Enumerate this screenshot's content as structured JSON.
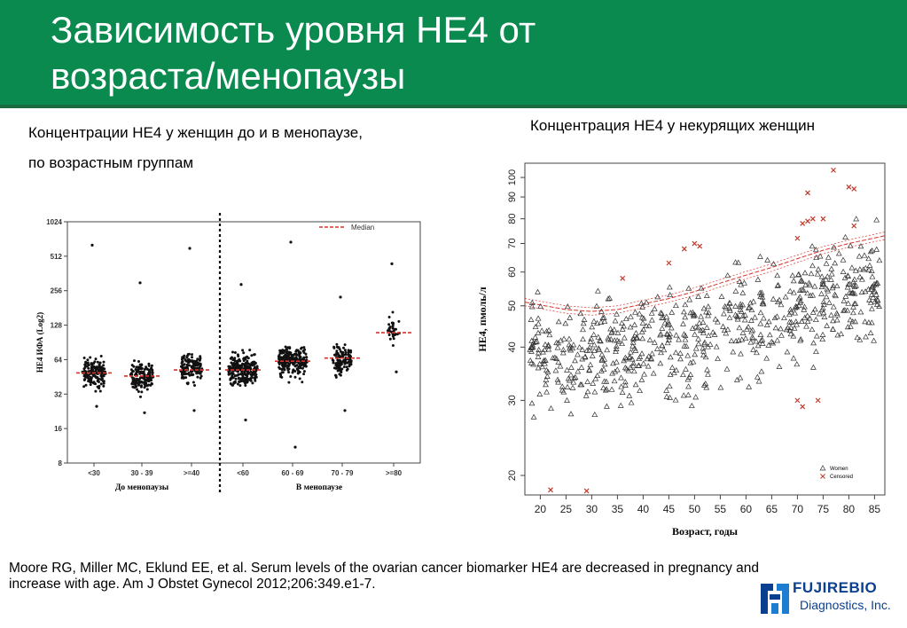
{
  "slide": {
    "title_line1": "Зависимость уровня HE4 от",
    "title_line2": "возраста/менопаузы",
    "left_caption_line1": "Концентрации HE4 у женщин до и в менопаузе,",
    "left_caption_line2": "по возрастным группам",
    "right_caption": "Концентрация HE4 у некурящих женщин",
    "citation": "Moore RG, Miller MC, Eklund EE, et al. Serum levels of the ovarian cancer biomarker HE4 are decreased in pregnancy and increase with age.  Am J Obstet Gynecol 2012;206:349.e1-7.",
    "logo_name": "FUJIREBIO",
    "logo_sub": "Diagnostics, Inc.",
    "colors": {
      "header": "#0a8a4e",
      "logo": "#0b3f8f",
      "median": "#d9342b",
      "censored": "#c0392b"
    }
  },
  "chart_data": [
    {
      "type": "scatter",
      "subtype": "dot-strip",
      "ylabel": "HE4 ИФА (Log2)",
      "y_scale": "log2",
      "ylim": [
        8,
        1024
      ],
      "yticks": [
        "8",
        "16",
        "32",
        "64",
        "128",
        "256",
        "512",
        "1024"
      ],
      "legend": "Median",
      "legend_position": "top-right",
      "groups": [
        {
          "label": "До менопаузы",
          "categories": [
            "<30",
            "30 - 39",
            ">=40"
          ]
        },
        {
          "label": "В менопаузе",
          "categories": [
            "<60",
            "60 - 69",
            "70 - 79",
            ">=80"
          ]
        }
      ],
      "series": [
        {
          "category": "<30",
          "median": 49,
          "min": 25,
          "max": 640,
          "n": 160
        },
        {
          "category": "30 - 39",
          "median": 46,
          "min": 22,
          "max": 300,
          "n": 150
        },
        {
          "category": ">=40",
          "median": 52,
          "min": 23,
          "max": 600,
          "n": 140
        },
        {
          "category": "<60",
          "median": 52,
          "min": 19,
          "max": 290,
          "n": 260
        },
        {
          "category": "60 - 69",
          "median": 62,
          "min": 11,
          "max": 680,
          "n": 220
        },
        {
          "category": "70 - 79",
          "median": 66,
          "min": 23,
          "max": 225,
          "n": 110
        },
        {
          "category": ">=80",
          "median": 110,
          "min": 50,
          "max": 440,
          "n": 35
        }
      ]
    },
    {
      "type": "scatter",
      "xlabel": "Возраст, годы",
      "ylabel": "HE4, пмоль/л",
      "xlim": [
        17,
        87
      ],
      "ylim": [
        18,
        108
      ],
      "y_scale": "log",
      "xticks": [
        20,
        25,
        30,
        35,
        40,
        45,
        50,
        55,
        60,
        65,
        70,
        75,
        80,
        85
      ],
      "yticks": [
        20,
        30,
        40,
        50,
        60,
        70,
        80,
        90,
        100
      ],
      "legend_position": "bottom-right",
      "series": [
        {
          "name": "Women",
          "marker": "triangle",
          "count": 700
        },
        {
          "name": "Censored",
          "marker": "x",
          "color": "#c0392b",
          "points": [
            [
              22,
              18.5
            ],
            [
              29,
              18.4
            ],
            [
              36,
              58
            ],
            [
              45,
              63
            ],
            [
              48,
              68
            ],
            [
              50,
              70
            ],
            [
              51,
              69
            ],
            [
              70,
              72
            ],
            [
              71,
              78
            ],
            [
              72,
              79
            ],
            [
              72,
              92
            ],
            [
              73,
              80
            ],
            [
              75,
              80
            ],
            [
              77,
              104
            ],
            [
              80,
              95
            ],
            [
              81,
              94
            ],
            [
              81,
              77
            ],
            [
              70,
              30
            ],
            [
              71,
              29
            ],
            [
              74,
              30
            ]
          ]
        },
        {
          "name": "fit",
          "style": "dashed-curve",
          "points": [
            [
              17,
              51
            ],
            [
              25,
              49
            ],
            [
              30,
              48.5
            ],
            [
              35,
              49
            ],
            [
              40,
              50.5
            ],
            [
              45,
              52
            ],
            [
              50,
              54
            ],
            [
              55,
              56.5
            ],
            [
              60,
              59
            ],
            [
              65,
              61.5
            ],
            [
              70,
              64.5
            ],
            [
              75,
              67.5
            ],
            [
              80,
              70
            ],
            [
              87,
              73
            ]
          ]
        }
      ]
    }
  ]
}
